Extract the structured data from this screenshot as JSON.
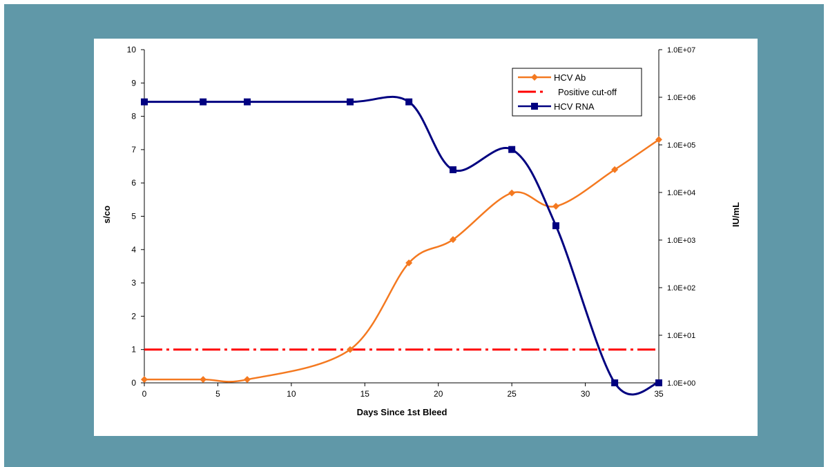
{
  "colors": {
    "frame": "#6098a8",
    "hcv_ab": "#f47920",
    "cutoff": "#ff0000",
    "hcv_rna": "#000080"
  },
  "chart_data": {
    "type": "line",
    "xlabel": "Days Since 1st Bleed",
    "ylabel": "s/co",
    "y2label": "IU/mL",
    "xlim": [
      0,
      35
    ],
    "ylim": [
      0,
      10
    ],
    "y2lim": [
      1,
      10000000
    ],
    "y2scale": "log",
    "x_ticks": [
      "0",
      "5",
      "10",
      "15",
      "20",
      "25",
      "30",
      "35"
    ],
    "y_ticks": [
      "0",
      "1",
      "2",
      "3",
      "4",
      "5",
      "6",
      "7",
      "8",
      "9",
      "10"
    ],
    "y2_ticks": [
      "1.0E+00",
      "1.0E+01",
      "1.0E+02",
      "1.0E+03",
      "1.0E+04",
      "1.0E+05",
      "1.0E+06",
      "1.0E+07"
    ],
    "legend": "top-right",
    "grid": false,
    "series": [
      {
        "name": "HCV Ab",
        "axis": "left",
        "smooth": true,
        "marker": "diamond",
        "x": [
          0,
          4,
          7,
          14,
          18,
          21,
          25,
          28,
          32,
          35
        ],
        "y": [
          0.1,
          0.1,
          0.1,
          1.0,
          3.6,
          4.3,
          5.7,
          5.3,
          6.4,
          7.3
        ]
      },
      {
        "name": "Positive cut-off",
        "axis": "left",
        "style": "dash-dot",
        "x": [
          0,
          35
        ],
        "y": [
          1,
          1
        ]
      },
      {
        "name": "HCV RNA",
        "axis": "right",
        "smooth": true,
        "marker": "square",
        "x": [
          0,
          4,
          7,
          14,
          18,
          21,
          25,
          28,
          32,
          35
        ],
        "y": [
          800000,
          800000,
          800000,
          800000,
          800000,
          30000,
          80000,
          2000,
          1,
          1
        ]
      }
    ]
  }
}
